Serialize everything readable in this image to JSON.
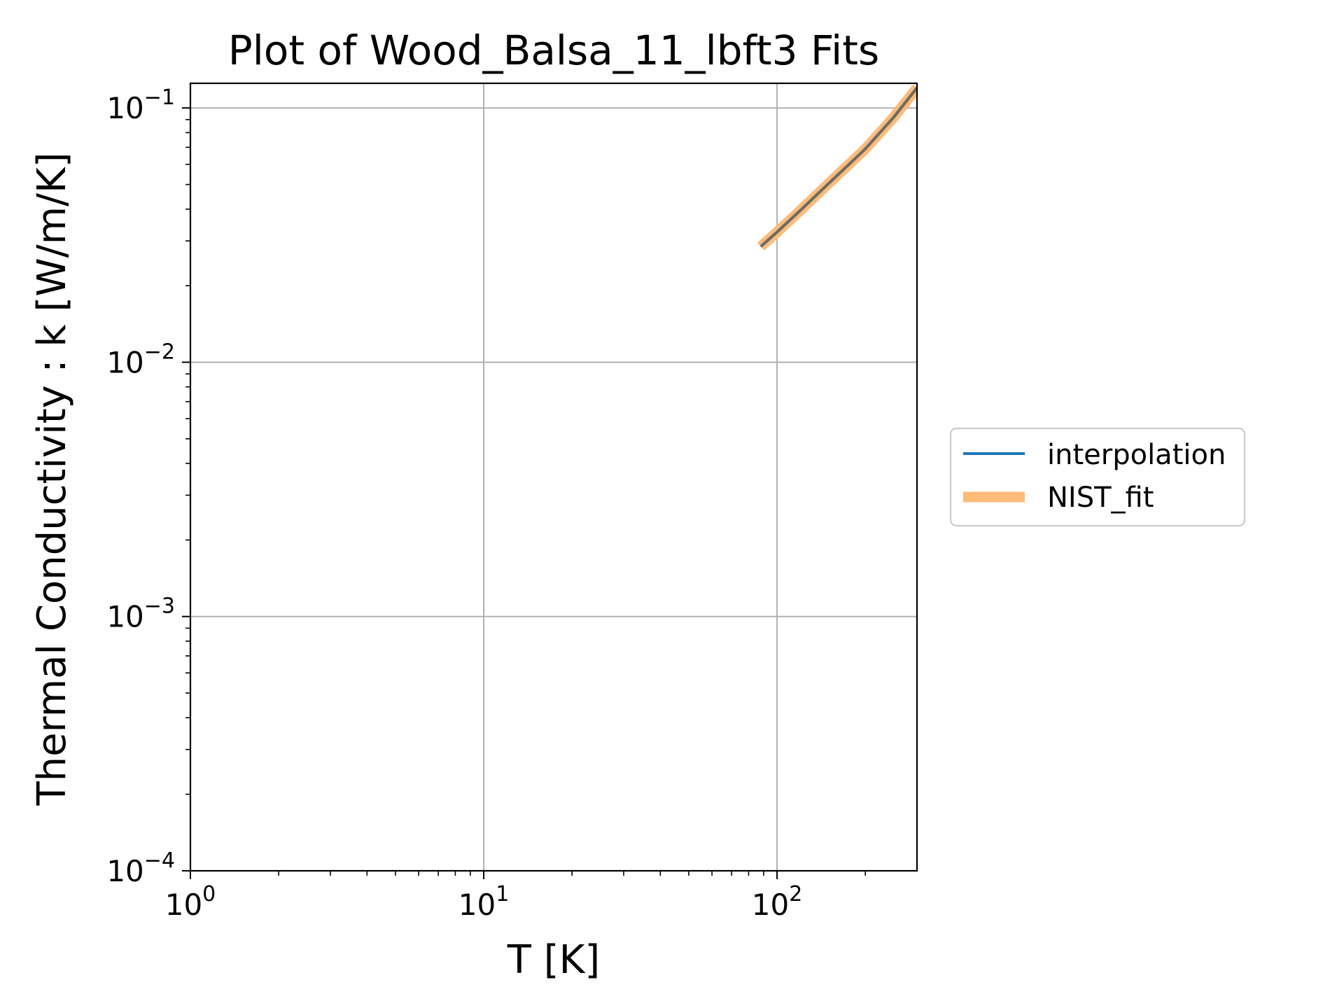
{
  "chart_data": {
    "type": "line",
    "title": "Plot of Wood_Balsa_11_lbft3 Fits",
    "xlabel": "T [K]",
    "ylabel": "Thermal Conductivity : k [W/m/K]",
    "xscale": "log",
    "yscale": "log",
    "xlim": [
      1,
      300
    ],
    "ylim": [
      0.0001,
      0.125
    ],
    "grid": true,
    "legend_placement": "outside-right",
    "x_ticks": [
      {
        "value": 1,
        "base": "10",
        "exp": "0"
      },
      {
        "value": 10,
        "base": "10",
        "exp": "1"
      },
      {
        "value": 100,
        "base": "10",
        "exp": "2"
      }
    ],
    "y_ticks": [
      {
        "value": 0.1,
        "base": "10",
        "exp": "−1"
      },
      {
        "value": 0.01,
        "base": "10",
        "exp": "−2"
      },
      {
        "value": 0.001,
        "base": "10",
        "exp": "−3"
      },
      {
        "value": 0.0001,
        "base": "10",
        "exp": "−4"
      }
    ],
    "series": [
      {
        "name": "interpolation",
        "color": "#1f77b4",
        "x": [
          88,
          100,
          120,
          150,
          180,
          200,
          250,
          300
        ],
        "y": [
          0.0285,
          0.0325,
          0.0395,
          0.0505,
          0.0615,
          0.069,
          0.092,
          0.12
        ]
      },
      {
        "name": "NIST_fit",
        "color": "#ffbb78",
        "x": [
          88,
          100,
          120,
          150,
          180,
          200,
          250,
          300
        ],
        "y": [
          0.0285,
          0.0325,
          0.0395,
          0.0505,
          0.0615,
          0.069,
          0.092,
          0.12
        ]
      }
    ]
  }
}
